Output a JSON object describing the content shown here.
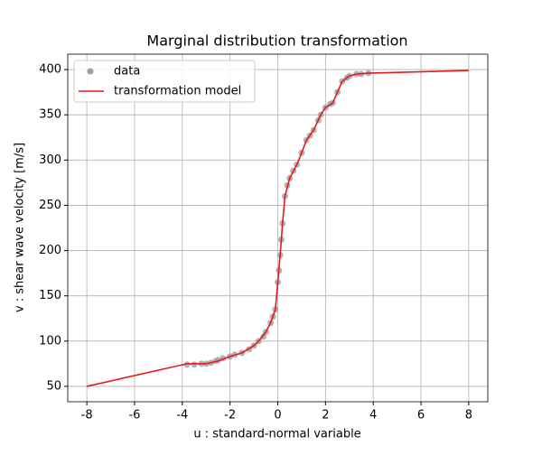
{
  "chart_data": {
    "type": "line",
    "title": "Marginal distribution transformation",
    "xlabel": "u : standard-normal variable",
    "ylabel": "v : shear wave velocity [m/s]",
    "xlim": [
      -8.8,
      8.8
    ],
    "ylim": [
      33,
      417
    ],
    "xticks": [
      -8,
      -6,
      -4,
      -2,
      0,
      2,
      4,
      6,
      8
    ],
    "yticks": [
      50,
      100,
      150,
      200,
      250,
      300,
      350,
      400
    ],
    "grid": true,
    "legend": "upper-left",
    "series": [
      {
        "name": "data",
        "color": "#a0a0a0",
        "marker": true,
        "x": [
          -3.8,
          -3.5,
          -3.2,
          -3.0,
          -2.8,
          -2.6,
          -2.5,
          -2.3,
          -2.0,
          -1.8,
          -1.5,
          -1.2,
          -1.0,
          -0.8,
          -0.6,
          -0.5,
          -0.3,
          -0.2,
          -0.1,
          0.0,
          0.05,
          0.1,
          0.15,
          0.2,
          0.3,
          0.4,
          0.5,
          0.65,
          0.8,
          1.0,
          1.2,
          1.35,
          1.5,
          1.7,
          1.8,
          2.0,
          2.2,
          2.3,
          2.5,
          2.7,
          2.9,
          3.0,
          3.3,
          3.5,
          3.8
        ],
        "values": [
          74,
          74,
          75,
          75,
          76,
          78,
          79,
          81,
          83,
          85,
          87,
          91,
          95,
          100,
          105,
          110,
          120,
          127,
          135,
          165,
          178,
          195,
          212,
          230,
          260,
          272,
          280,
          288,
          295,
          308,
          322,
          327,
          333,
          344,
          350,
          358,
          362,
          363,
          375,
          387,
          391,
          393,
          395,
          395,
          396
        ]
      },
      {
        "name": "transformation model",
        "color": "#e41a1c",
        "marker": false,
        "x": [
          -8,
          -3.8,
          -3.0,
          -2.5,
          -2.0,
          -1.5,
          -1.0,
          -0.8,
          -0.5,
          -0.3,
          -0.1,
          0.0,
          0.1,
          0.2,
          0.3,
          0.5,
          0.8,
          1.0,
          1.2,
          1.5,
          1.8,
          2.0,
          2.3,
          2.5,
          2.7,
          3.0,
          3.3,
          3.8,
          8
        ],
        "values": [
          50,
          75,
          75,
          78,
          83,
          87,
          95,
          100,
          110,
          120,
          135,
          165,
          195,
          230,
          260,
          280,
          295,
          308,
          322,
          333,
          350,
          358,
          363,
          375,
          387,
          393,
          395,
          396,
          399
        ]
      }
    ]
  }
}
